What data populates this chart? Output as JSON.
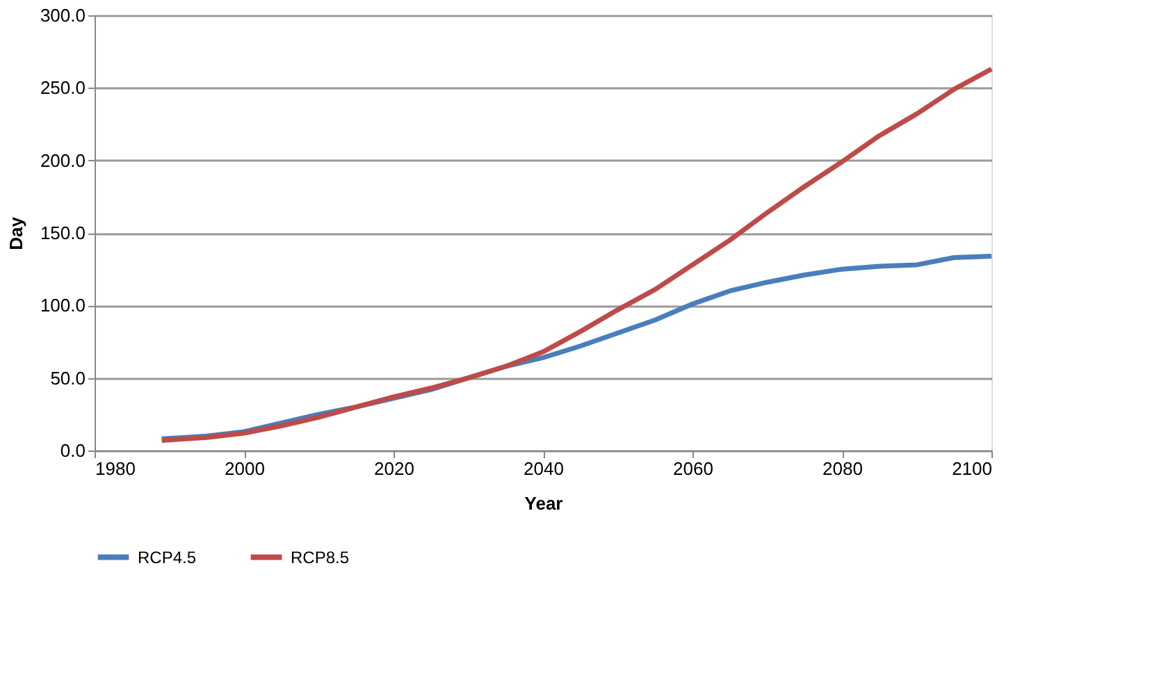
{
  "chart_data": {
    "type": "line",
    "xlabel": "Year",
    "ylabel": "Day",
    "x": [
      1989,
      1995,
      2000,
      2005,
      2010,
      2015,
      2020,
      2025,
      2030,
      2035,
      2040,
      2045,
      2050,
      2055,
      2060,
      2065,
      2070,
      2075,
      2080,
      2085,
      2090,
      2095,
      2100
    ],
    "series": [
      {
        "name": "RCP4.5",
        "color": "#4a7ebb",
        "values": [
          8,
          10,
          13,
          19,
          25,
          30,
          36,
          42,
          50,
          58,
          64,
          72,
          81,
          90,
          101,
          110,
          116,
          121,
          125,
          127,
          128,
          133,
          134
        ]
      },
      {
        "name": "RCP8.5",
        "color": "#be4b48",
        "values": [
          7,
          9,
          12,
          17,
          23,
          30,
          37,
          43,
          50,
          58,
          68,
          82,
          97,
          111,
          128,
          145,
          164,
          182,
          199,
          217,
          232,
          249,
          263
        ]
      }
    ],
    "xlim": [
      1980,
      2100
    ],
    "xticks": [
      1980,
      2000,
      2020,
      2040,
      2060,
      2080,
      2100
    ],
    "ylim": [
      0,
      300
    ],
    "yticks": [
      {
        "value": 0,
        "label": "0.0"
      },
      {
        "value": 50,
        "label": "50.0"
      },
      {
        "value": 100,
        "label": "100.0"
      },
      {
        "value": 150,
        "label": "150.0"
      },
      {
        "value": 200,
        "label": "200.0"
      },
      {
        "value": 250,
        "label": "250.0"
      },
      {
        "value": 300,
        "label": "300.0"
      }
    ],
    "grid": "y",
    "legend": "bottom",
    "marker": "none",
    "line_style": "solid"
  }
}
